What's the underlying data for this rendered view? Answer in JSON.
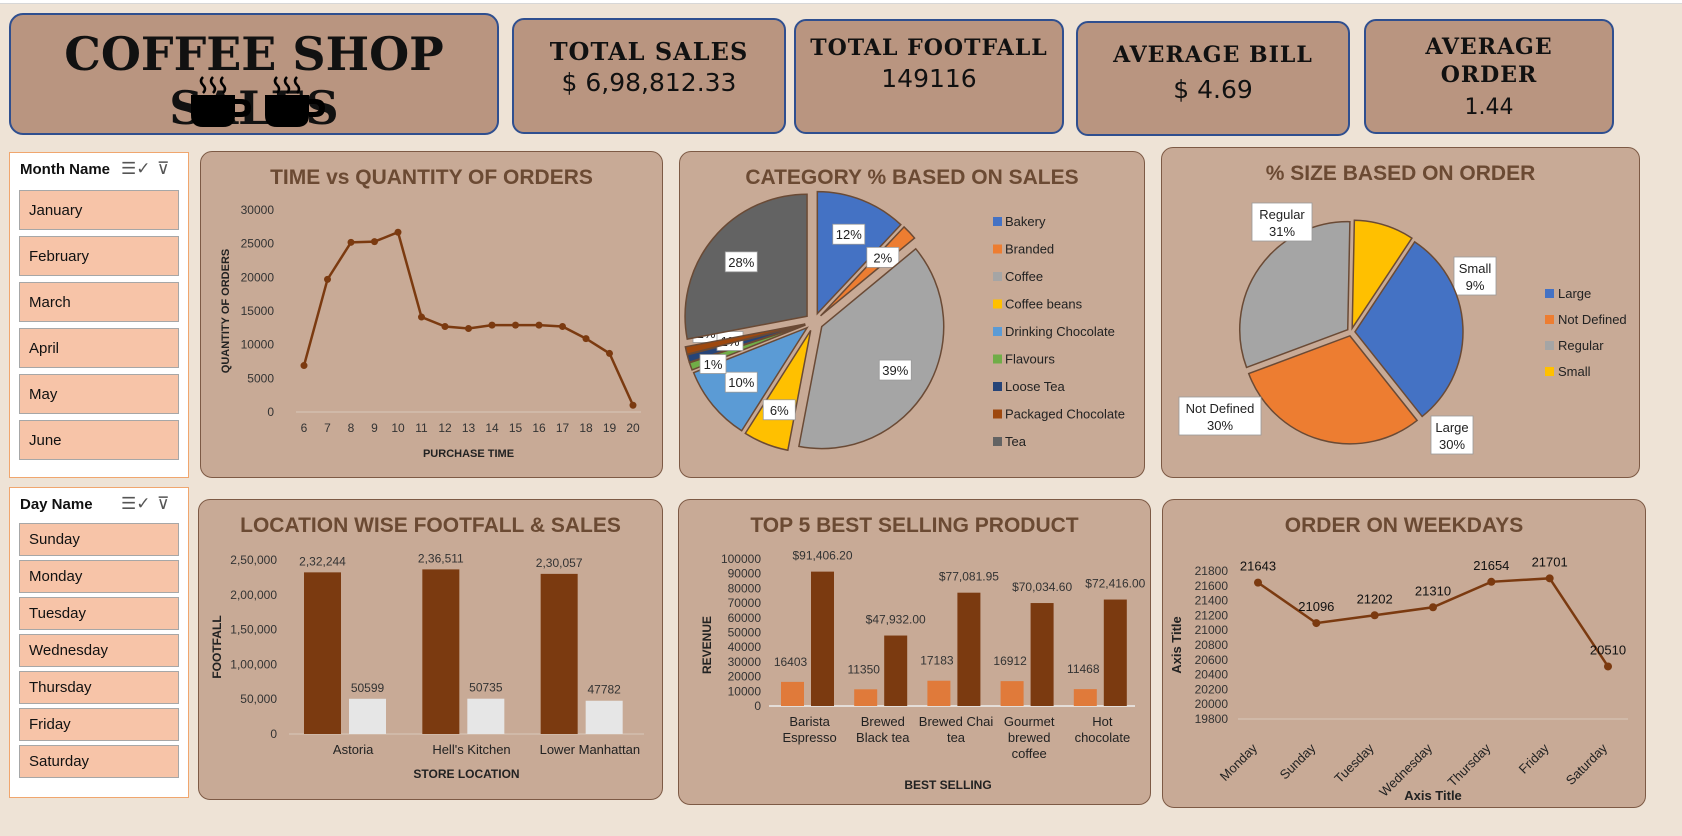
{
  "title": "COFFEE SHOP SALES",
  "kpis": [
    {
      "label": "TOTAL SALES",
      "value": "$ 6,98,812.33"
    },
    {
      "label": "TOTAL FOOTFALL",
      "value": "149116"
    },
    {
      "label": "AVERAGE BILL",
      "value": "$ 4.69"
    },
    {
      "label_1": "AVERAGE",
      "label_2": "ORDER",
      "value": "1.44"
    }
  ],
  "month_slicer": {
    "header": "Month Name",
    "items": [
      "January",
      "February",
      "March",
      "April",
      "May",
      "June"
    ]
  },
  "day_slicer": {
    "header": "Day Name",
    "items": [
      "Sunday",
      "Monday",
      "Tuesday",
      "Wednesday",
      "Thursday",
      "Friday",
      "Saturday"
    ]
  },
  "colors": {
    "brown": "#7b3a10",
    "orange": "#e07a3a",
    "panel": "#c8aa96",
    "kpi": "#b99580"
  },
  "chart_data": [
    {
      "type": "line",
      "title": "TIME vs QUANTITY OF ORDERS",
      "xlabel": "PURCHASE TIME",
      "ylabel": "QUANTITY OF ORDERS",
      "x": [
        6,
        7,
        8,
        9,
        10,
        11,
        12,
        13,
        14,
        15,
        16,
        17,
        18,
        19,
        20
      ],
      "values": [
        6900,
        19700,
        25200,
        25300,
        26700,
        14100,
        12700,
        12400,
        12900,
        12900,
        12900,
        12700,
        10900,
        8700,
        1000
      ],
      "ylim": [
        0,
        30000
      ],
      "yticks": [
        "0",
        "5000",
        "10000",
        "15000",
        "20000",
        "25000",
        "30000"
      ]
    },
    {
      "type": "pie",
      "title": "CATEGORY % BASED ON SALES",
      "labels": [
        "Bakery",
        "Branded",
        "Coffee",
        "Coffee beans",
        "Drinking Chocolate",
        "Flavours",
        "Loose Tea",
        "Packaged Chocolate",
        "Tea"
      ],
      "values": [
        12,
        2,
        39,
        6,
        10,
        1,
        1,
        1,
        28
      ],
      "display": [
        "12%",
        "2%",
        "39%",
        "6%",
        "10%",
        "1%",
        "1%",
        "1%",
        "28%"
      ],
      "colors": [
        "#4472c4",
        "#ed7d31",
        "#a5a5a5",
        "#ffc000",
        "#5b9bd5",
        "#70ad47",
        "#264478",
        "#9e480e",
        "#636363"
      ],
      "legend": "right"
    },
    {
      "type": "pie",
      "title": "% SIZE BASED ON ORDER",
      "labels": [
        "Large",
        "Not Defined",
        "Regular",
        "Small"
      ],
      "values": [
        30,
        30,
        31,
        9
      ],
      "display": [
        "30%",
        "30%",
        "31%",
        "9%"
      ],
      "colors": [
        "#4472c4",
        "#ed7d31",
        "#a5a5a5",
        "#ffc000"
      ],
      "legend": "right"
    },
    {
      "type": "bar",
      "title": "LOCATION WISE FOOTFALL & SALES",
      "xlabel": "STORE LOCATION",
      "ylabel": "FOOTFALL",
      "categories": [
        "Astoria",
        "Hell's Kitchen",
        "Lower Manhattan"
      ],
      "series": [
        {
          "values": [
            232244,
            236511,
            230057
          ],
          "labels": [
            "2,32,244",
            "2,36,511",
            "2,30,057"
          ],
          "color": "#7b3a10"
        },
        {
          "values": [
            50599,
            50735,
            47782
          ],
          "labels": [
            "50599",
            "50735",
            "47782"
          ],
          "color": "#e6e6e6"
        }
      ],
      "ylim": [
        0,
        250000
      ],
      "yticks": [
        "0",
        "50,000",
        "1,00,000",
        "1,50,000",
        "2,00,000",
        "2,50,000"
      ]
    },
    {
      "type": "bar",
      "title": "TOP 5 BEST SELLING PRODUCT",
      "xlabel": "BEST SELLING",
      "ylabel": "REVENUE",
      "categories": [
        [
          "Barista",
          "Espresso"
        ],
        [
          "Brewed",
          "Black tea"
        ],
        [
          "Brewed Chai",
          "tea"
        ],
        [
          "Gourmet",
          "brewed",
          "coffee"
        ],
        [
          "Hot",
          "chocolate"
        ]
      ],
      "series": [
        {
          "values": [
            16403,
            11350,
            17183,
            16912,
            11468
          ],
          "labels": [
            "16403",
            "11350",
            "17183",
            "16912",
            "11468"
          ],
          "color": "#e07a3a"
        },
        {
          "values": [
            91406.2,
            47932,
            77081.95,
            70034.6,
            72416
          ],
          "labels": [
            "$91,406.20",
            "$47,932.00",
            "$77,081.95",
            "$70,034.60",
            "$72,416.00"
          ],
          "color": "#7b3a10"
        }
      ],
      "ylim": [
        0,
        100000
      ],
      "yticks": [
        "0",
        "10000",
        "20000",
        "30000",
        "40000",
        "50000",
        "60000",
        "70000",
        "80000",
        "90000",
        "100000"
      ]
    },
    {
      "type": "line",
      "title": "ORDER ON WEEKDAYS",
      "xlabel": "Axis Title",
      "ylabel": "Axis Title",
      "categories": [
        "Monday",
        "Sunday",
        "Tuesday",
        "Wednesday",
        "Thursday",
        "Friday",
        "Saturday"
      ],
      "values": [
        21643,
        21096,
        21202,
        21310,
        21654,
        21701,
        20510
      ],
      "ylim": [
        19800,
        21800
      ],
      "yticks": [
        "19800",
        "20000",
        "20200",
        "20400",
        "20600",
        "20800",
        "21000",
        "21200",
        "21400",
        "21600",
        "21800"
      ]
    }
  ]
}
